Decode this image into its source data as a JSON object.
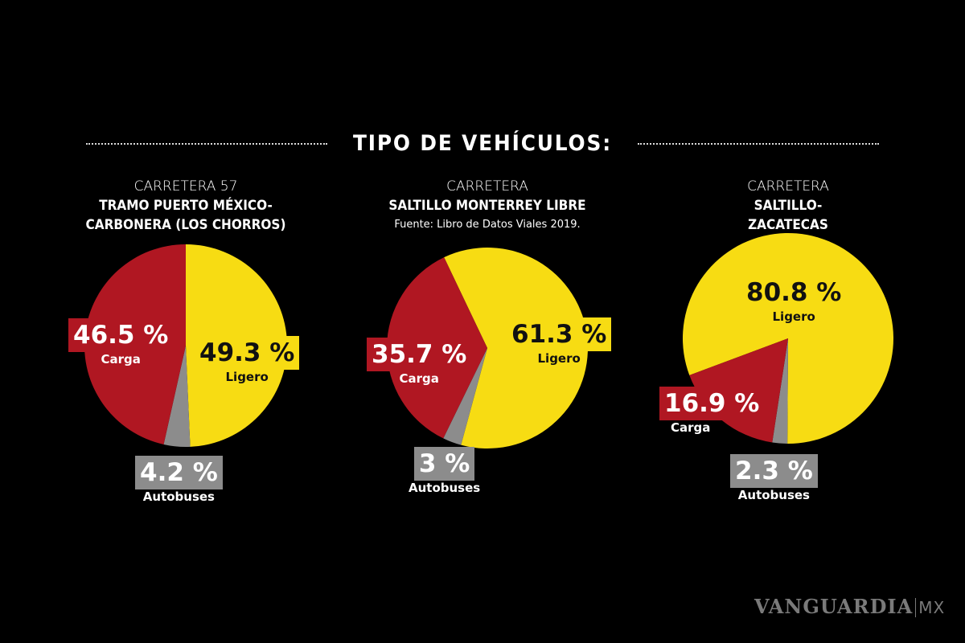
{
  "chart_data": [
    {
      "type": "pie",
      "header_line1": "CARRETERA 57",
      "header_line2": "TRAMO PUERTO MÉXICO-",
      "header_line3": "CARBONERA (LOS CHORROS)",
      "slices": [
        {
          "name": "Ligero",
          "value": 49.3,
          "label": "49.3 %",
          "color": "#f7dc13"
        },
        {
          "name": "Autobuses",
          "value": 4.2,
          "label": "4.2 %",
          "color": "#8c8c8c"
        },
        {
          "name": "Carga",
          "value": 46.5,
          "label": "46.5 %",
          "color": "#b01722"
        }
      ]
    },
    {
      "type": "pie",
      "header_line1": "CARRETERA",
      "header_line2": "SALTILLO MONTERREY LIBRE",
      "source": "Fuente: Libro de Datos Viales 2019.",
      "slices": [
        {
          "name": "Ligero",
          "value": 61.3,
          "label": "61.3 %",
          "color": "#f7dc13"
        },
        {
          "name": "Autobuses",
          "value": 3,
          "label": "3 %",
          "color": "#8c8c8c"
        },
        {
          "name": "Carga",
          "value": 35.7,
          "label": "35.7 %",
          "color": "#b01722"
        }
      ]
    },
    {
      "type": "pie",
      "header_line1": "CARRETERA",
      "header_line2": "SALTILLO-",
      "header_line3": "ZACATECAS",
      "slices": [
        {
          "name": "Ligero",
          "value": 80.8,
          "label": "80.8 %",
          "color": "#f7dc13"
        },
        {
          "name": "Autobuses",
          "value": 2.3,
          "label": "2.3 %",
          "color": "#8c8c8c"
        },
        {
          "name": "Carga",
          "value": 16.9,
          "label": "16.9 %",
          "color": "#b01722"
        }
      ]
    }
  ],
  "title": "TIPO DE VEHÍCULOS:",
  "logo": {
    "brand": "VANGUARDIA",
    "suffix": "MX"
  }
}
